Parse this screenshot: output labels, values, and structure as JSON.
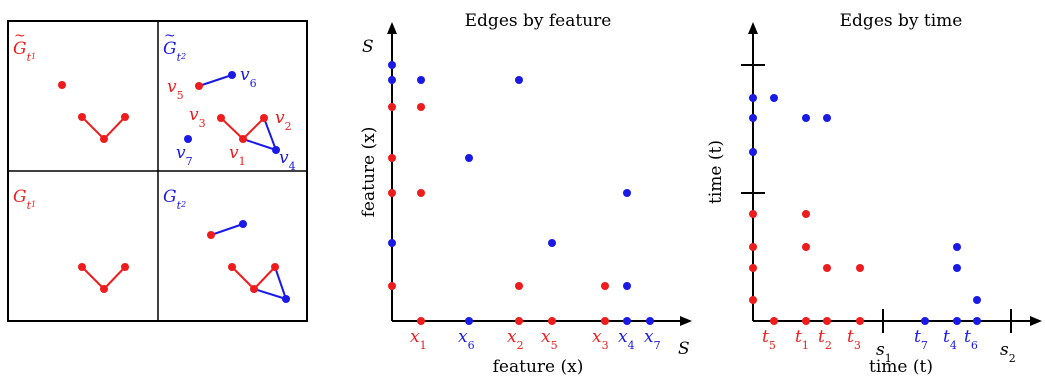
{
  "colors": {
    "red": "#ee1c1c",
    "blue": "#1a1ae6",
    "black": "#000000"
  },
  "panels": {
    "tl": {
      "main": "G",
      "tilde": "~",
      "sub": "t",
      "subsub": "1"
    },
    "tr": {
      "main": "G",
      "tilde": "~",
      "sub": "t",
      "subsub": "2"
    },
    "bl": {
      "main": "G",
      "sub": "t",
      "subsub": "1"
    },
    "br": {
      "main": "G",
      "sub": "t",
      "subsub": "2"
    }
  },
  "node_labels": {
    "v1": {
      "main": "v",
      "sub": "1"
    },
    "v2": {
      "main": "v",
      "sub": "2"
    },
    "v3": {
      "main": "v",
      "sub": "3"
    },
    "v4": {
      "main": "v",
      "sub": "4"
    },
    "v5": {
      "main": "v",
      "sub": "5"
    },
    "v6": {
      "main": "v",
      "sub": "6"
    },
    "v7": {
      "main": "v",
      "sub": "7"
    }
  },
  "chart_feature": {
    "title": "Edges by feature",
    "y_axis_symbol": "S",
    "x_axis_symbol": "S",
    "ylabel": "feature (x)",
    "xlabel": "feature (x)",
    "x_ticks": [
      {
        "main": "x",
        "sub": "1",
        "color": "red"
      },
      {
        "main": "x",
        "sub": "6",
        "color": "blue"
      },
      {
        "main": "x",
        "sub": "2",
        "color": "red"
      },
      {
        "main": "x",
        "sub": "5",
        "color": "red"
      },
      {
        "main": "x",
        "sub": "3",
        "color": "red"
      },
      {
        "main": "x",
        "sub": "4",
        "color": "blue"
      },
      {
        "main": "x",
        "sub": "7",
        "color": "blue"
      }
    ]
  },
  "chart_time": {
    "title": "Edges by time",
    "ylabel": "time (t)",
    "xlabel": "time (t)",
    "x_ticks": [
      {
        "main": "t",
        "sub": "5",
        "color": "red"
      },
      {
        "main": "t",
        "sub": "1",
        "color": "red"
      },
      {
        "main": "t",
        "sub": "2",
        "color": "red"
      },
      {
        "main": "t",
        "sub": "3",
        "color": "red"
      },
      {
        "main": "t",
        "sub": "7",
        "color": "blue"
      },
      {
        "main": "t",
        "sub": "4",
        "color": "blue"
      },
      {
        "main": "t",
        "sub": "6",
        "color": "blue"
      }
    ],
    "s_ticks": [
      {
        "main": "s",
        "sub": "1"
      },
      {
        "main": "s",
        "sub": "2"
      }
    ]
  }
}
